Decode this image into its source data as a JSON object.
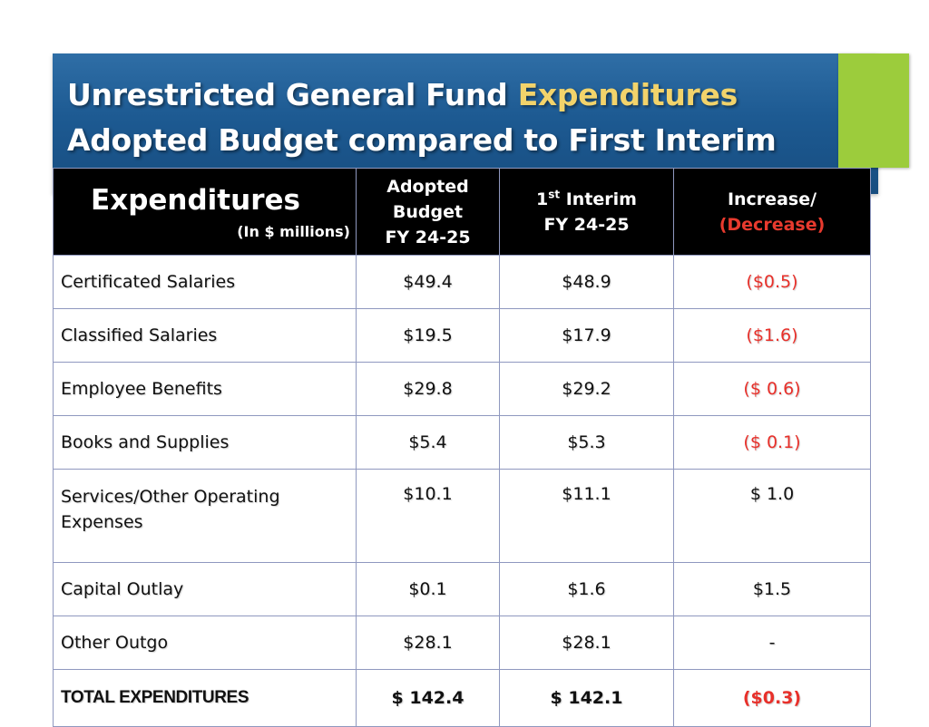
{
  "title": {
    "line1_main": "Unrestricted General Fund",
    "line1_highlight": "Expenditures",
    "line2": "Adopted Budget compared to First Interim"
  },
  "colors": {
    "banner": "#1d5a92",
    "accent_bar": "#9ccc3c",
    "title_highlight": "#f2d36b",
    "negative": "#e8302a",
    "header_bg": "#000000"
  },
  "table": {
    "header": {
      "label": "Expenditures",
      "label_sub": "(In $ millions)",
      "adopted": [
        "Adopted",
        "Budget",
        "FY 24-25"
      ],
      "interim_prefix": "1",
      "interim_sup": "st",
      "interim_suffix": " Interim",
      "interim_year": "FY 24-25",
      "change_line1": "Increase/",
      "change_line2": "(Decrease)"
    },
    "rows": [
      {
        "category": "Certificated Salaries",
        "adopted": "$49.4",
        "interim": "$48.9",
        "change": "($0.5)"
      },
      {
        "category": "Classified Salaries",
        "adopted": "$19.5",
        "interim": "$17.9",
        "change": "($1.6)"
      },
      {
        "category": "Employee Benefits",
        "adopted": "$29.8",
        "interim": "$29.2",
        "change": "($ 0.6)"
      },
      {
        "category": "Books and Supplies",
        "adopted": "$5.4",
        "interim": "$5.3",
        "change": "($ 0.1)"
      },
      {
        "category": "Services/Other Operating Expenses",
        "adopted": "$10.1",
        "interim": "$11.1",
        "change": "$ 1.0"
      },
      {
        "category": "Capital Outlay",
        "adopted": "$0.1",
        "interim": "$1.6",
        "change": "$1.5"
      },
      {
        "category": "Other Outgo",
        "adopted": "$28.1",
        "interim": "$28.1",
        "change": "-"
      }
    ],
    "total": {
      "category": "TOTAL EXPENDITURES",
      "adopted": "$ 142.4",
      "interim": "$ 142.1",
      "change": "($0.3)"
    }
  }
}
